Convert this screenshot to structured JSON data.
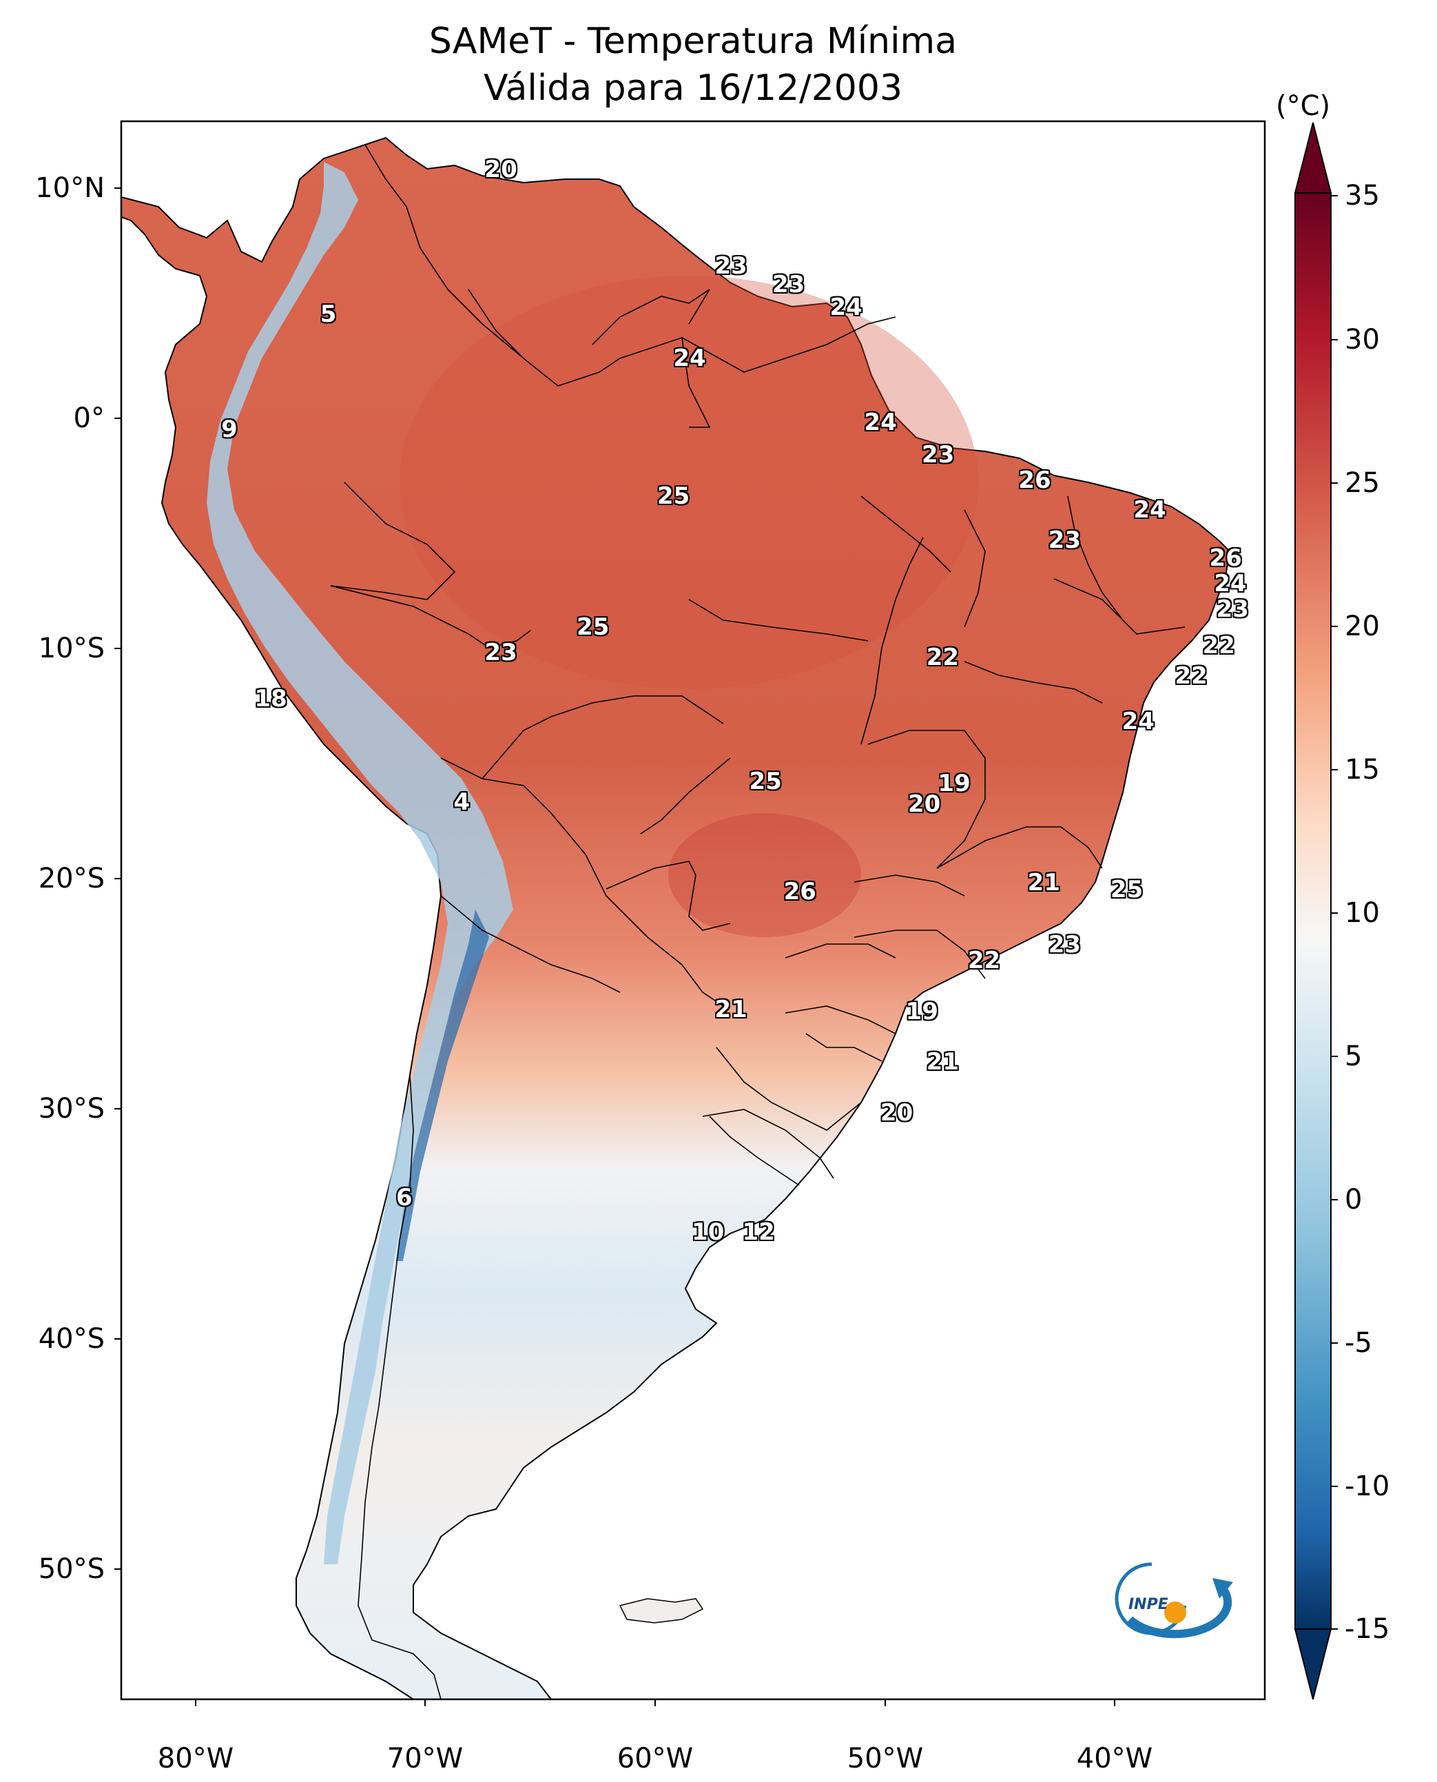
{
  "title": {
    "line1": "SAMeT - Temperatura Mínima",
    "line2": "Válida para 16/12/2003"
  },
  "axes": {
    "lat_ticks": [
      "10°N",
      "0°",
      "10°S",
      "20°S",
      "30°S",
      "40°S",
      "50°S"
    ],
    "lon_ticks": [
      "80°W",
      "70°W",
      "60°W",
      "50°W",
      "40°W"
    ]
  },
  "colorbar": {
    "unit": "(°C)",
    "ticks": [
      "35",
      "30",
      "25",
      "20",
      "15",
      "10",
      "5",
      "0",
      "-5",
      "-10",
      "-15"
    ],
    "min": -15,
    "max": 35,
    "colors": {
      "high": "#67001f",
      "warm": "#d6604d",
      "mild": "#fddbc7",
      "neutral": "#f7f7f7",
      "cool": "#d1e5f0",
      "cold": "#4393c3",
      "low": "#053061"
    }
  },
  "map_values": [
    {
      "text": "20",
      "lon": -67.0,
      "lat": 11.0
    },
    {
      "text": "23",
      "lon": -57.0,
      "lat": 6.8
    },
    {
      "text": "23",
      "lon": -54.5,
      "lat": 6.0
    },
    {
      "text": "24",
      "lon": -52.0,
      "lat": 5.0
    },
    {
      "text": "5",
      "lon": -74.5,
      "lat": 4.7
    },
    {
      "text": "24",
      "lon": -58.8,
      "lat": 2.8
    },
    {
      "text": "24",
      "lon": -50.5,
      "lat": 0.0
    },
    {
      "text": "9",
      "lon": -78.8,
      "lat": -0.3
    },
    {
      "text": "23",
      "lon": -48.0,
      "lat": -1.4
    },
    {
      "text": "26",
      "lon": -43.8,
      "lat": -2.5
    },
    {
      "text": "25",
      "lon": -59.5,
      "lat": -3.2
    },
    {
      "text": "24",
      "lon": -38.8,
      "lat": -3.8
    },
    {
      "text": "23",
      "lon": -42.5,
      "lat": -5.1
    },
    {
      "text": "26",
      "lon": -35.5,
      "lat": -5.9
    },
    {
      "text": "24",
      "lon": -35.3,
      "lat": -7.0
    },
    {
      "text": "23",
      "lon": -35.2,
      "lat": -8.1
    },
    {
      "text": "25",
      "lon": -63.0,
      "lat": -8.9
    },
    {
      "text": "22",
      "lon": -35.8,
      "lat": -9.7
    },
    {
      "text": "23",
      "lon": -67.0,
      "lat": -10.0
    },
    {
      "text": "22",
      "lon": -47.8,
      "lat": -10.2
    },
    {
      "text": "22",
      "lon": -37.0,
      "lat": -11.0
    },
    {
      "text": "18",
      "lon": -77.0,
      "lat": -12.0
    },
    {
      "text": "24",
      "lon": -39.3,
      "lat": -13.0
    },
    {
      "text": "25",
      "lon": -55.5,
      "lat": -15.6
    },
    {
      "text": "19",
      "lon": -47.3,
      "lat": -15.7
    },
    {
      "text": "20",
      "lon": -48.6,
      "lat": -16.6
    },
    {
      "text": "4",
      "lon": -68.7,
      "lat": -16.5
    },
    {
      "text": "21",
      "lon": -43.4,
      "lat": -20.0
    },
    {
      "text": "25",
      "lon": -39.8,
      "lat": -20.3
    },
    {
      "text": "26",
      "lon": -54.0,
      "lat": -20.4
    },
    {
      "text": "23",
      "lon": -42.5,
      "lat": -22.7
    },
    {
      "text": "22",
      "lon": -46.0,
      "lat": -23.4
    },
    {
      "text": "21",
      "lon": -57.0,
      "lat": -25.5
    },
    {
      "text": "19",
      "lon": -48.7,
      "lat": -25.6
    },
    {
      "text": "21",
      "lon": -47.8,
      "lat": -27.8
    },
    {
      "text": "20",
      "lon": -49.8,
      "lat": -30.0
    },
    {
      "text": "6",
      "lon": -71.2,
      "lat": -33.7
    },
    {
      "text": "10",
      "lon": -58.0,
      "lat": -35.2
    },
    {
      "text": "12",
      "lon": -55.8,
      "lat": -35.2
    }
  ],
  "logo": {
    "text": "INPE"
  }
}
